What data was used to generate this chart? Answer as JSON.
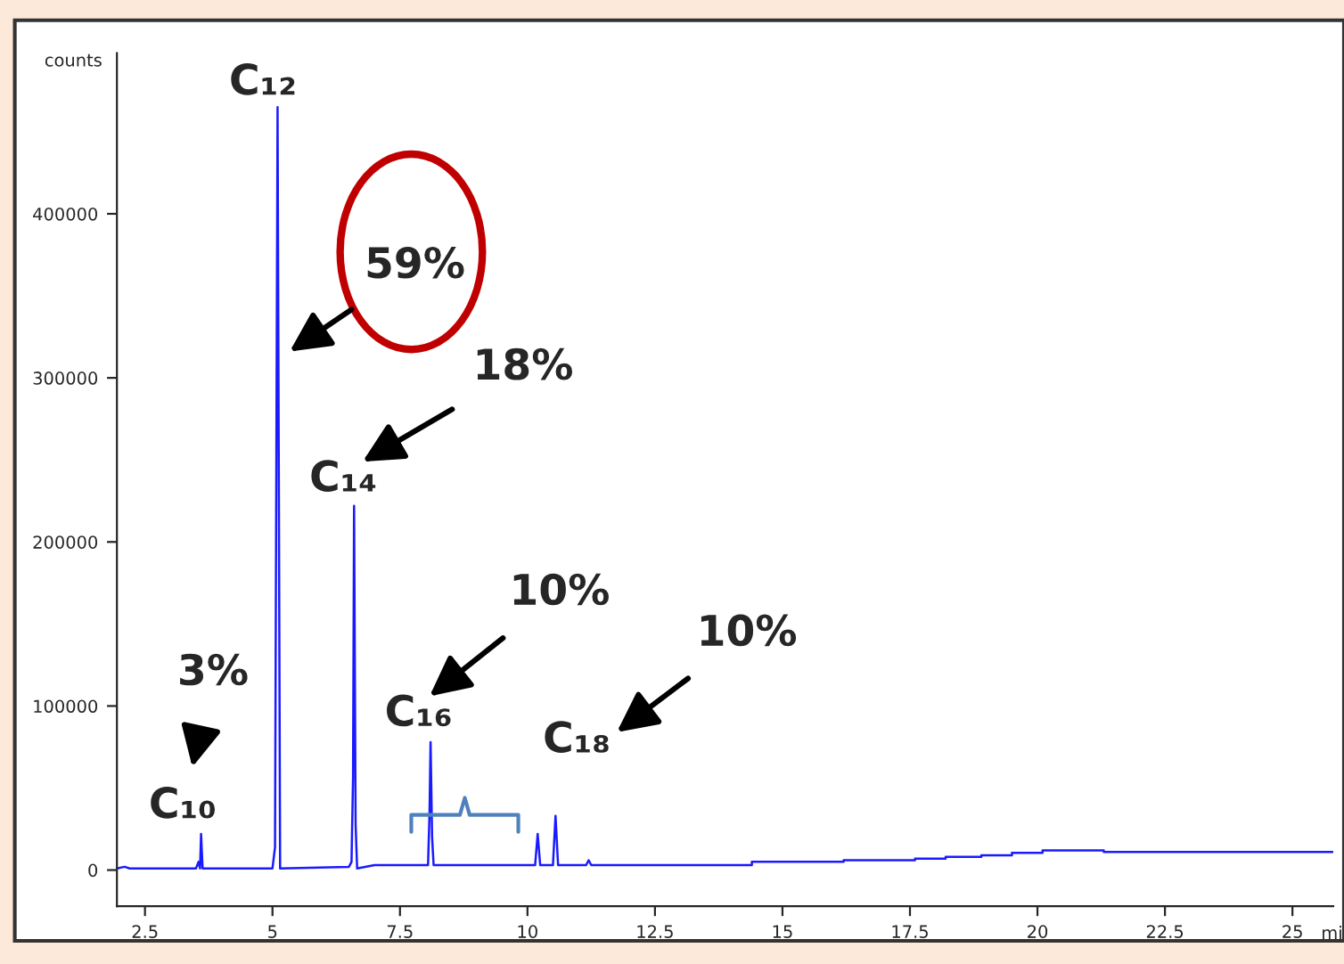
{
  "chart_data": {
    "type": "line",
    "xlabel": "mi",
    "ylabel": "counts",
    "series": [
      {
        "color": "#1a1aff",
        "x": [
          1.95,
          2.1,
          2.2,
          3.5,
          3.55,
          3.58,
          3.6,
          3.63,
          5.0,
          5.05,
          5.1,
          5.15,
          6.5,
          6.55,
          6.58,
          6.6,
          6.63,
          6.66,
          7.0,
          8.05,
          8.08,
          8.1,
          8.13,
          8.16,
          10.15,
          10.2,
          10.25,
          10.5,
          10.55,
          10.6,
          11.15,
          11.2,
          11.25,
          14.4,
          14.4,
          16.2,
          16.2,
          17.6,
          17.6,
          18.2,
          18.2,
          18.9,
          18.9,
          19.5,
          19.5,
          20.1,
          20.1,
          21.3,
          21.3,
          25.8
        ],
        "values": [
          1000,
          2000,
          1000,
          1000,
          5000,
          1000,
          22000,
          1000,
          1000,
          14000,
          465000,
          1000,
          2000,
          5000,
          57000,
          222000,
          28000,
          1000,
          3000,
          3000,
          35000,
          78000,
          20000,
          3000,
          3000,
          22000,
          3000,
          3000,
          33000,
          3000,
          3000,
          6000,
          3000,
          3000,
          5000,
          5000,
          6000,
          6000,
          7000,
          7000,
          8000,
          8000,
          9000,
          9000,
          10500,
          10500,
          12000,
          12000,
          11000,
          11000
        ]
      }
    ],
    "xlim": [
      1.95,
      25.8
    ],
    "ylim": [
      -22000,
      498000
    ],
    "xticks": [
      2.5,
      5,
      7.5,
      10,
      12.5,
      15,
      17.5,
      20,
      22.5,
      25
    ],
    "yticks": [
      0,
      100000,
      200000,
      300000,
      400000
    ],
    "grid": false,
    "legend": false,
    "marker": "none",
    "line_style": "solid",
    "annotations": [
      "C₁₀",
      "C₁₂",
      "C₁₄",
      "C₁₆",
      "C₁₈",
      "3%",
      "59%",
      "18%",
      "10%",
      "10%"
    ]
  }
}
